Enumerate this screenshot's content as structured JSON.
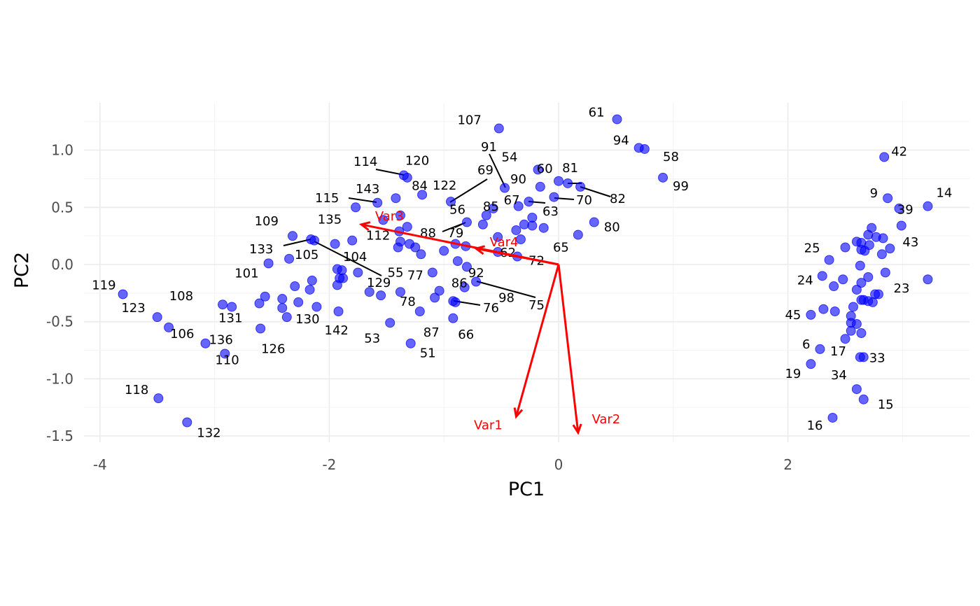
{
  "chart_data": {
    "type": "scatter",
    "title": "",
    "xlabel": "PC1",
    "ylabel": "PC2",
    "xlim": [
      -4.1,
      3.5
    ],
    "ylim": [
      -1.58,
      1.37
    ],
    "x_ticks": [
      -4,
      -2,
      0,
      2
    ],
    "x_tick_labels": [
      "-4",
      "-2",
      "0",
      "2"
    ],
    "y_ticks": [
      -1.5,
      -1.0,
      -0.5,
      0.0,
      0.5,
      1.0
    ],
    "y_tick_labels": [
      "-1.5",
      "-1.0",
      "-0.5",
      "0.0",
      "0.5",
      "1.0"
    ],
    "grid": true,
    "legend": "none",
    "point_color": "#0000ff",
    "arrow_color": "#ff0000",
    "points": [
      {
        "label": "107",
        "x": -0.52,
        "y": 1.19
      },
      {
        "label": "61",
        "x": 0.51,
        "y": 1.27
      },
      {
        "label": "94",
        "x": 0.7,
        "y": 1.02
      },
      {
        "label": null,
        "x": 0.75,
        "y": 1.01
      },
      {
        "label": "58",
        "x": 0.91,
        "y": 0.76
      },
      {
        "label": "99",
        "x": null,
        "y": null
      },
      {
        "label": "91",
        "x": -0.47,
        "y": 0.67
      },
      {
        "label": "90",
        "x": null,
        "y": null
      },
      {
        "label": "54",
        "x": -0.18,
        "y": 0.83
      },
      {
        "label": "60",
        "x": -0.16,
        "y": 0.68
      },
      {
        "label": "81",
        "x": 0.08,
        "y": 0.71
      },
      {
        "label": "82",
        "x": 0.19,
        "y": 0.68
      },
      {
        "label": null,
        "x": 0.0,
        "y": 0.73
      },
      {
        "label": "70",
        "x": -0.04,
        "y": 0.59
      },
      {
        "label": "63",
        "x": -0.26,
        "y": 0.55
      },
      {
        "label": null,
        "x": -0.35,
        "y": 0.51
      },
      {
        "label": "80",
        "x": 0.31,
        "y": 0.37
      },
      {
        "label": "65",
        "x": 0.17,
        "y": 0.26
      },
      {
        "label": null,
        "x": -0.13,
        "y": 0.32
      },
      {
        "label": null,
        "x": -0.23,
        "y": 0.34
      },
      {
        "label": null,
        "x": -0.23,
        "y": 0.41
      },
      {
        "label": null,
        "x": -0.3,
        "y": 0.35
      },
      {
        "label": null,
        "x": -0.37,
        "y": 0.3
      },
      {
        "label": null,
        "x": -0.33,
        "y": 0.22
      },
      {
        "label": "72",
        "x": -0.36,
        "y": 0.07
      },
      {
        "label": null,
        "x": -0.53,
        "y": 0.24
      },
      {
        "label": "62",
        "x": -0.53,
        "y": 0.11
      },
      {
        "label": "67",
        "x": -0.57,
        "y": 0.49
      },
      {
        "label": null,
        "x": -0.63,
        "y": 0.43
      },
      {
        "label": "85",
        "x": -0.66,
        "y": 0.35
      },
      {
        "label": "69",
        "x": -0.94,
        "y": 0.55
      },
      {
        "label": "122",
        "x": null,
        "y": null
      },
      {
        "label": "56",
        "x": -0.8,
        "y": 0.37
      },
      {
        "label": "79",
        "x": -0.81,
        "y": 0.16
      },
      {
        "label": "88",
        "x": -0.9,
        "y": 0.18
      },
      {
        "label": null,
        "x": -1.0,
        "y": 0.12
      },
      {
        "label": "92",
        "x": -0.88,
        "y": 0.03
      },
      {
        "label": null,
        "x": -0.8,
        "y": -0.02
      },
      {
        "label": "98",
        "x": -0.72,
        "y": -0.15
      },
      {
        "label": "75",
        "x": null,
        "y": null
      },
      {
        "label": "86",
        "x": -0.82,
        "y": -0.2
      },
      {
        "label": null,
        "x": -0.92,
        "y": -0.32
      },
      {
        "label": "76",
        "x": -0.9,
        "y": -0.33
      },
      {
        "label": "66",
        "x": -0.92,
        "y": -0.47
      },
      {
        "label": "87",
        "x": -1.21,
        "y": -0.41
      },
      {
        "label": null,
        "x": -1.08,
        "y": -0.29
      },
      {
        "label": null,
        "x": -1.04,
        "y": -0.23
      },
      {
        "label": "77",
        "x": -1.1,
        "y": -0.07
      },
      {
        "label": "55",
        "x": -1.2,
        "y": 0.09
      },
      {
        "label": null,
        "x": -1.25,
        "y": 0.15
      },
      {
        "label": null,
        "x": -1.3,
        "y": 0.18
      },
      {
        "label": null,
        "x": -1.4,
        "y": 0.15
      },
      {
        "label": null,
        "x": -1.38,
        "y": 0.2
      },
      {
        "label": "84",
        "x": -1.19,
        "y": 0.61
      },
      {
        "label": "112",
        "x": -1.39,
        "y": 0.29
      },
      {
        "label": null,
        "x": -1.32,
        "y": 0.33
      },
      {
        "label": null,
        "x": -1.38,
        "y": 0.43
      },
      {
        "label": "114",
        "x": -1.32,
        "y": 0.76
      },
      {
        "label": "120",
        "x": -1.35,
        "y": 0.78
      },
      {
        "label": "143",
        "x": -1.42,
        "y": 0.58
      },
      {
        "label": "115",
        "x": -1.58,
        "y": 0.54
      },
      {
        "label": null,
        "x": -1.77,
        "y": 0.5
      },
      {
        "label": null,
        "x": -1.53,
        "y": 0.39
      },
      {
        "label": "135",
        "x": -1.8,
        "y": 0.21
      },
      {
        "label": "104",
        "x": -1.95,
        "y": 0.18
      },
      {
        "label": null,
        "x": -1.75,
        "y": -0.07
      },
      {
        "label": "129",
        "x": -1.93,
        "y": -0.04
      },
      {
        "label": null,
        "x": -1.89,
        "y": -0.05
      },
      {
        "label": null,
        "x": -1.91,
        "y": -0.12
      },
      {
        "label": null,
        "x": -1.88,
        "y": -0.12
      },
      {
        "label": null,
        "x": -1.93,
        "y": -0.18
      },
      {
        "label": "78",
        "x": -1.38,
        "y": -0.24
      },
      {
        "label": null,
        "x": -1.55,
        "y": -0.27
      },
      {
        "label": null,
        "x": -1.65,
        "y": -0.24
      },
      {
        "label": "142",
        "x": -1.92,
        "y": -0.41
      },
      {
        "label": "53",
        "x": -1.47,
        "y": -0.51
      },
      {
        "label": "51",
        "x": -1.29,
        "y": -0.69
      },
      {
        "label": "109",
        "x": -2.32,
        "y": 0.25
      },
      {
        "label": "133",
        "x": -2.16,
        "y": 0.22
      },
      {
        "label": "105",
        "x": -2.13,
        "y": 0.21
      },
      {
        "label": null,
        "x": -2.35,
        "y": 0.05
      },
      {
        "label": "101",
        "x": -2.53,
        "y": 0.01
      },
      {
        "label": null,
        "x": -2.15,
        "y": -0.14
      },
      {
        "label": null,
        "x": -2.3,
        "y": -0.19
      },
      {
        "label": null,
        "x": -2.17,
        "y": -0.22
      },
      {
        "label": "130",
        "x": -2.27,
        "y": -0.33
      },
      {
        "label": null,
        "x": -2.11,
        "y": -0.37
      },
      {
        "label": null,
        "x": -2.41,
        "y": -0.3
      },
      {
        "label": null,
        "x": -2.41,
        "y": -0.38
      },
      {
        "label": null,
        "x": -2.37,
        "y": -0.46
      },
      {
        "label": null,
        "x": -2.56,
        "y": -0.28
      },
      {
        "label": "131",
        "x": -2.61,
        "y": -0.34
      },
      {
        "label": "126",
        "x": -2.6,
        "y": -0.56
      },
      {
        "label": "108",
        "x": -2.93,
        "y": -0.35
      },
      {
        "label": null,
        "x": -2.85,
        "y": -0.37
      },
      {
        "label": "136",
        "x": -3.08,
        "y": -0.69
      },
      {
        "label": "110",
        "x": -2.91,
        "y": -0.78
      },
      {
        "label": "119",
        "x": -3.8,
        "y": -0.26
      },
      {
        "label": "123",
        "x": -3.5,
        "y": -0.46
      },
      {
        "label": "106",
        "x": -3.4,
        "y": -0.55
      },
      {
        "label": "118",
        "x": -3.49,
        "y": -1.17
      },
      {
        "label": "132",
        "x": -3.24,
        "y": -1.38
      },
      {
        "label": "42",
        "x": 2.84,
        "y": 0.94
      },
      {
        "label": "9",
        "x": 2.87,
        "y": 0.58
      },
      {
        "label": "14",
        "x": 3.22,
        "y": 0.51
      },
      {
        "label": null,
        "x": 2.97,
        "y": 0.49
      },
      {
        "label": "39",
        "x": 2.99,
        "y": 0.34
      },
      {
        "label": null,
        "x": 2.73,
        "y": 0.32
      },
      {
        "label": "43",
        "x": 2.89,
        "y": 0.14
      },
      {
        "label": null,
        "x": 2.83,
        "y": 0.23
      },
      {
        "label": null,
        "x": 2.77,
        "y": 0.24
      },
      {
        "label": null,
        "x": 2.7,
        "y": 0.26
      },
      {
        "label": null,
        "x": 2.71,
        "y": 0.17
      },
      {
        "label": null,
        "x": 2.6,
        "y": 0.2
      },
      {
        "label": null,
        "x": 2.64,
        "y": 0.19
      },
      {
        "label": null,
        "x": 2.64,
        "y": 0.13
      },
      {
        "label": null,
        "x": 2.67,
        "y": 0.12
      },
      {
        "label": null,
        "x": 2.5,
        "y": 0.15
      },
      {
        "label": "25",
        "x": 2.36,
        "y": 0.04
      },
      {
        "label": null,
        "x": 2.82,
        "y": 0.09
      },
      {
        "label": null,
        "x": 2.63,
        "y": -0.01
      },
      {
        "label": null,
        "x": 2.85,
        "y": -0.07
      },
      {
        "label": "23",
        "x": 3.22,
        "y": -0.13
      },
      {
        "label": null,
        "x": 2.7,
        "y": -0.11
      },
      {
        "label": "24",
        "x": 2.3,
        "y": -0.1
      },
      {
        "label": null,
        "x": 2.48,
        "y": -0.13
      },
      {
        "label": null,
        "x": 2.4,
        "y": -0.19
      },
      {
        "label": null,
        "x": 2.64,
        "y": -0.16
      },
      {
        "label": null,
        "x": 2.6,
        "y": -0.22
      },
      {
        "label": null,
        "x": 2.76,
        "y": -0.26
      },
      {
        "label": null,
        "x": 2.79,
        "y": -0.26
      },
      {
        "label": null,
        "x": 2.64,
        "y": -0.31
      },
      {
        "label": null,
        "x": 2.66,
        "y": -0.31
      },
      {
        "label": null,
        "x": 2.7,
        "y": -0.32
      },
      {
        "label": null,
        "x": 2.74,
        "y": -0.33
      },
      {
        "label": null,
        "x": 2.57,
        "y": -0.37
      },
      {
        "label": "45",
        "x": 2.2,
        "y": -0.44
      },
      {
        "label": null,
        "x": 2.31,
        "y": -0.39
      },
      {
        "label": null,
        "x": 2.41,
        "y": -0.41
      },
      {
        "label": null,
        "x": 2.55,
        "y": -0.45
      },
      {
        "label": null,
        "x": 2.55,
        "y": -0.51
      },
      {
        "label": null,
        "x": 2.6,
        "y": -0.52
      },
      {
        "label": null,
        "x": 2.55,
        "y": -0.58
      },
      {
        "label": null,
        "x": 2.64,
        "y": -0.6
      },
      {
        "label": null,
        "x": 2.5,
        "y": -0.65
      },
      {
        "label": "17",
        "x": null,
        "y": null
      },
      {
        "label": "6",
        "x": 2.28,
        "y": -0.74
      },
      {
        "label": "33",
        "x": 2.66,
        "y": -0.81
      },
      {
        "label": null,
        "x": 2.63,
        "y": -0.81
      },
      {
        "label": "19",
        "x": 2.2,
        "y": -0.87
      },
      {
        "label": "34",
        "x": 2.6,
        "y": -1.09
      },
      {
        "label": "15",
        "x": 2.66,
        "y": -1.18
      },
      {
        "label": "16",
        "x": 2.39,
        "y": -1.34
      }
    ],
    "loadings": [
      {
        "name": "Var1",
        "x": -0.37,
        "y": -1.33
      },
      {
        "name": "Var2",
        "x": 0.17,
        "y": -1.47
      },
      {
        "name": "Var3",
        "x": -1.72,
        "y": 0.35
      },
      {
        "name": "Var4",
        "x": -0.72,
        "y": 0.14
      }
    ]
  }
}
